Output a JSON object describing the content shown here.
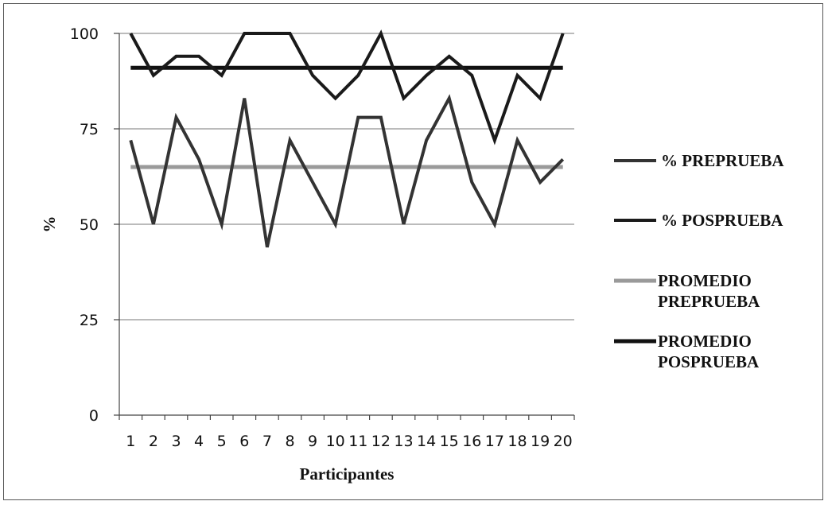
{
  "chart_data": {
    "type": "line",
    "title": "",
    "xlabel": "Participantes",
    "ylabel": "%",
    "ylim": [
      0,
      100
    ],
    "yticks": [
      0,
      25,
      50,
      75,
      100
    ],
    "grid": "horizontal",
    "legend_position": "right",
    "categories": [
      "1",
      "2",
      "3",
      "4",
      "5",
      "6",
      "7",
      "8",
      "9",
      "10",
      "11",
      "12",
      "13",
      "14",
      "15",
      "16",
      "17",
      "18",
      "19",
      "20"
    ],
    "series": [
      {
        "name": "% PREPRUEBA",
        "color": "#333333",
        "width": 4,
        "values": [
          72,
          50,
          78,
          67,
          50,
          83,
          44,
          72,
          61,
          50,
          78,
          78,
          50,
          72,
          83,
          61,
          50,
          72,
          61,
          67
        ]
      },
      {
        "name": "% POSPRUEBA",
        "color": "#1a1a1a",
        "width": 4,
        "values": [
          100,
          89,
          94,
          94,
          89,
          100,
          100,
          100,
          89,
          83,
          89,
          100,
          83,
          89,
          94,
          89,
          72,
          89,
          83,
          100
        ]
      },
      {
        "name": "PROMEDIO PREPRUEBA",
        "legend_lines": [
          "PROMEDIO",
          "PREPRUEBA"
        ],
        "color": "#9a9a9a",
        "width": 5,
        "values": [
          65,
          65,
          65,
          65,
          65,
          65,
          65,
          65,
          65,
          65,
          65,
          65,
          65,
          65,
          65,
          65,
          65,
          65,
          65,
          65
        ]
      },
      {
        "name": "PROMEDIO POSPRUEBA",
        "legend_lines": [
          "PROMEDIO",
          "POSPRUEBA"
        ],
        "color": "#111111",
        "width": 5,
        "values": [
          91,
          91,
          91,
          91,
          91,
          91,
          91,
          91,
          91,
          91,
          91,
          91,
          91,
          91,
          91,
          91,
          91,
          91,
          91,
          91
        ]
      }
    ]
  }
}
